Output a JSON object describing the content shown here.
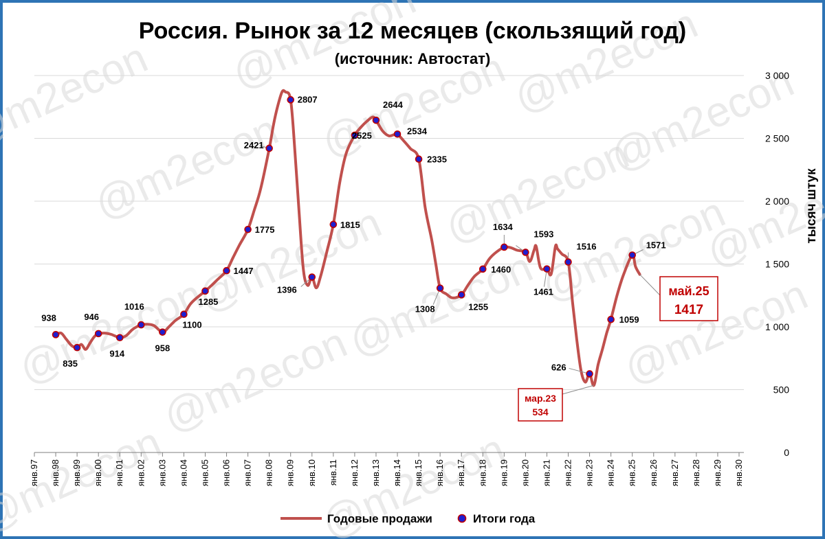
{
  "watermark": "@m2econ",
  "colors": {
    "line": "#c0504d",
    "marker_fill": "#1f1fcf",
    "marker_edge": "#c00000",
    "callout": "#c00000",
    "frame": "#2e74b5",
    "grid": "#d9d9d9"
  },
  "chart_data": {
    "type": "line",
    "title": "Россия. Рынок за 12 месяцев (скользящий год)",
    "subtitle": "(источник: Автостат)",
    "ylabel": "тысяч штук",
    "ylim": [
      0,
      3000
    ],
    "y_ticks": [
      "0",
      "500",
      "1 000",
      "1 500",
      "2 000",
      "2 500",
      "3 000"
    ],
    "y_tick_values": [
      0,
      500,
      1000,
      1500,
      2000,
      2500,
      3000
    ],
    "x_ticks": [
      "янв.97",
      "янв.98",
      "янв.99",
      "янв.00",
      "янв.01",
      "янв.02",
      "янв.03",
      "янв.04",
      "янв.05",
      "янв.06",
      "янв.07",
      "янв.08",
      "янв.09",
      "янв.10",
      "янв.11",
      "янв.12",
      "янв.13",
      "янв.14",
      "янв.15",
      "янв.16",
      "янв.17",
      "янв.18",
      "янв.19",
      "янв.20",
      "янв.21",
      "янв.22",
      "янв.23",
      "янв.24",
      "янв.25",
      "янв.26",
      "янв.27",
      "янв.28",
      "янв.29",
      "янв.30"
    ],
    "xlim": [
      1997,
      2030
    ],
    "grid": true,
    "legend_position": "bottom",
    "series": [
      {
        "name": "Годовые продажи",
        "kind": "line",
        "x": [
          1998.0,
          1998.25,
          1998.5,
          1998.75,
          1999.0,
          1999.2,
          1999.4,
          1999.6,
          1999.8,
          2000.0,
          2000.3,
          2000.6,
          2001.0,
          2001.3,
          2001.6,
          2002.0,
          2002.3,
          2002.6,
          2003.0,
          2003.3,
          2003.6,
          2004.0,
          2004.3,
          2004.6,
          2005.0,
          2005.3,
          2005.6,
          2006.0,
          2006.3,
          2006.6,
          2007.0,
          2007.3,
          2007.6,
          2008.0,
          2008.2,
          2008.4,
          2008.6,
          2008.75,
          2009.0,
          2009.2,
          2009.4,
          2009.6,
          2009.8,
          2010.0,
          2010.2,
          2010.4,
          2010.7,
          2011.0,
          2011.3,
          2011.6,
          2012.0,
          2012.3,
          2012.6,
          2012.85,
          2013.0,
          2013.3,
          2013.6,
          2013.85,
          2014.0,
          2014.3,
          2014.6,
          2015.0,
          2015.3,
          2015.6,
          2015.8,
          2016.0,
          2016.3,
          2016.6,
          2017.0,
          2017.3,
          2017.6,
          2018.0,
          2018.3,
          2018.6,
          2019.0,
          2019.3,
          2019.6,
          2020.0,
          2020.2,
          2020.4,
          2020.5,
          2020.7,
          2021.0,
          2021.2,
          2021.4,
          2021.5,
          2021.7,
          2022.0,
          2022.2,
          2022.4,
          2022.6,
          2022.8,
          2023.0,
          2023.2,
          2023.4,
          2023.6,
          2023.8,
          2024.0,
          2024.3,
          2024.6,
          2025.0,
          2025.15,
          2025.35
        ],
        "values": [
          938,
          950,
          900,
          850,
          835,
          860,
          820,
          870,
          920,
          946,
          950,
          940,
          914,
          930,
          980,
          1016,
          1020,
          1010,
          958,
          1000,
          1050,
          1100,
          1180,
          1230,
          1285,
          1330,
          1380,
          1447,
          1550,
          1650,
          1775,
          1930,
          2100,
          2421,
          2610,
          2760,
          2870,
          2870,
          2807,
          2400,
          1900,
          1450,
          1330,
          1396,
          1310,
          1400,
          1600,
          1815,
          2150,
          2380,
          2525,
          2590,
          2640,
          2670,
          2644,
          2560,
          2520,
          2530,
          2534,
          2480,
          2420,
          2335,
          1950,
          1700,
          1500,
          1308,
          1260,
          1230,
          1255,
          1330,
          1400,
          1460,
          1540,
          1590,
          1634,
          1630,
          1610,
          1593,
          1520,
          1610,
          1640,
          1470,
          1461,
          1420,
          1640,
          1620,
          1580,
          1516,
          1200,
          900,
          650,
          560,
          626,
          534,
          700,
          820,
          950,
          1059,
          1260,
          1420,
          1571,
          1480,
          1417
        ]
      },
      {
        "name": "Итоги года",
        "kind": "markers",
        "x": [
          1998,
          1999,
          2000,
          2001,
          2002,
          2003,
          2004,
          2005,
          2006,
          2007,
          2008,
          2009,
          2010,
          2011,
          2012,
          2013,
          2014,
          2015,
          2016,
          2017,
          2018,
          2019,
          2020,
          2021,
          2022,
          2023,
          2024,
          2025
        ],
        "values": [
          938,
          835,
          946,
          914,
          1016,
          958,
          1100,
          1285,
          1447,
          1775,
          2421,
          2807,
          1396,
          1815,
          2525,
          2644,
          2534,
          2335,
          1308,
          1255,
          1460,
          1634,
          1593,
          1461,
          1516,
          626,
          1059,
          1571
        ],
        "labels": [
          "938",
          "835",
          "946",
          "914",
          "1016",
          "958",
          "1100",
          "1285",
          "1447",
          "1775",
          "2421",
          "2807",
          "1396",
          "1815",
          "2525",
          "2644",
          "2534",
          "2335",
          "1308",
          "1255",
          "1460",
          "1634",
          "1593",
          "1461",
          "1516",
          "626",
          "1059",
          "1571"
        ]
      }
    ],
    "annotations": [
      {
        "text": "мар.23",
        "value_text": "534",
        "x": 2023.2,
        "y": 534
      },
      {
        "text": "май.25",
        "value_text": "1417",
        "x": 2025.35,
        "y": 1417
      }
    ]
  }
}
